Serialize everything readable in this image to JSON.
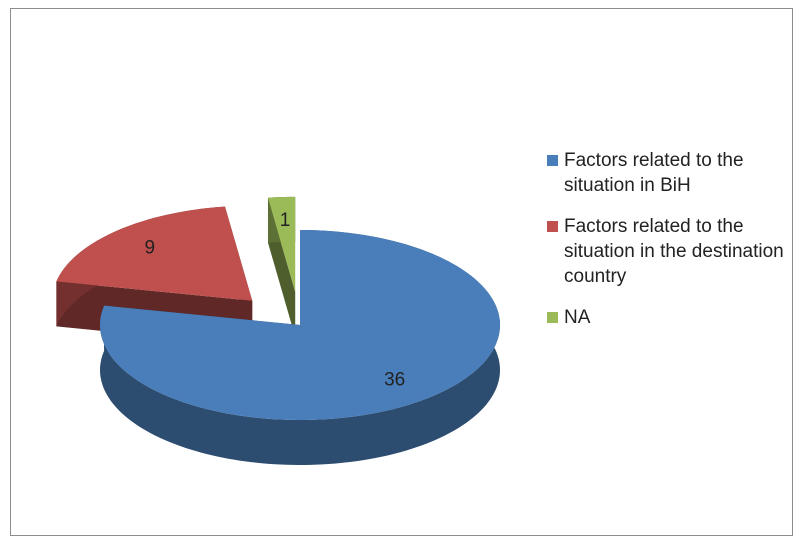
{
  "chart_data": {
    "type": "pie",
    "categories": [
      "Factors related to the situation in BiH",
      "Factors related to the situation in the destination country",
      "NA"
    ],
    "values": [
      36,
      9,
      1
    ],
    "colors": [
      "#4a7ebb",
      "#c0504d",
      "#9bbb59"
    ],
    "legend": "right"
  }
}
